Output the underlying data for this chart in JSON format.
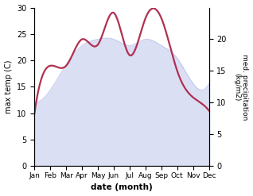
{
  "months": [
    "Jan",
    "Feb",
    "Mar",
    "Apr",
    "May",
    "Jun",
    "Jul",
    "Aug",
    "Sep",
    "Oct",
    "Nov",
    "Dec"
  ],
  "month_positions": [
    0,
    1,
    2,
    3,
    4,
    5,
    6,
    7,
    8,
    9,
    10,
    11
  ],
  "temp_max": [
    10,
    19,
    19,
    24,
    23,
    29,
    21,
    28,
    28,
    18,
    13,
    10.5
  ],
  "precipitation": [
    10,
    12,
    16,
    19,
    20,
    20,
    19,
    20,
    19,
    17,
    13,
    13
  ],
  "temp_color": "#b03050",
  "precip_color": "#b0b8e8",
  "xlabel": "date (month)",
  "ylabel_left": "max temp (C)",
  "ylabel_right": "med. precipitation\n(kg/m2)",
  "ylim_left": [
    0,
    30
  ],
  "ylim_right": [
    0,
    25
  ],
  "yticks_left": [
    0,
    5,
    10,
    15,
    20,
    25,
    30
  ],
  "yticks_right": [
    0,
    5,
    10,
    15,
    20
  ],
  "background_color": "#ffffff",
  "temp_linewidth": 1.6,
  "precip_fill_alpha": 0.45
}
